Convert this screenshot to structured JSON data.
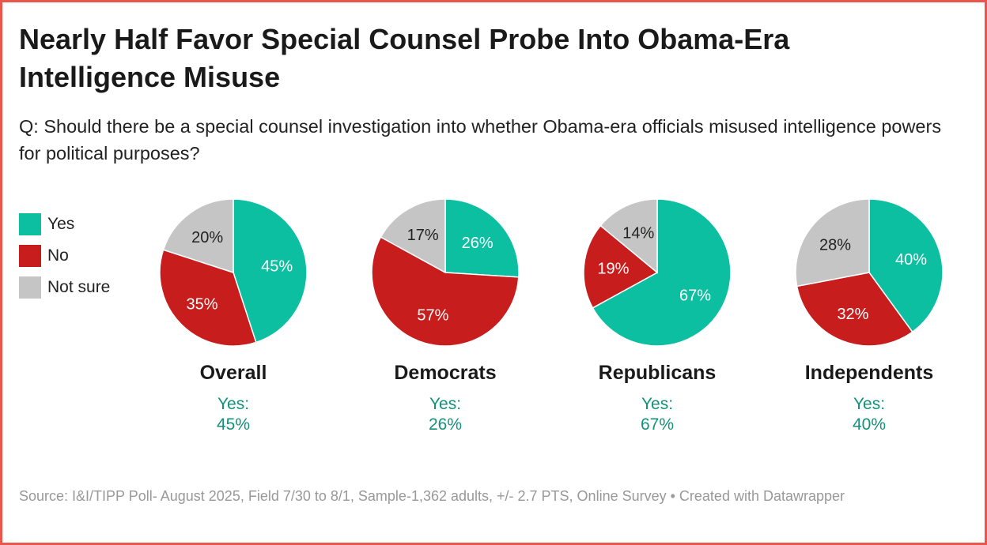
{
  "title": "Nearly Half Favor Special Counsel Probe Into Obama-Era Intelligence Misuse",
  "subtitle": "Q: Should there be a special counsel investigation into whether Obama-era officials misused intelligence powers for political purposes?",
  "legend": [
    {
      "label": "Yes",
      "color": "#0dbfa1"
    },
    {
      "label": "No",
      "color": "#c71e1d"
    },
    {
      "label": "Not sure",
      "color": "#c5c5c5"
    }
  ],
  "chart_data": {
    "type": "pie",
    "categories": [
      "Yes",
      "No",
      "Not sure"
    ],
    "colors": [
      "#0dbfa1",
      "#c71e1d",
      "#c5c5c5"
    ],
    "legend_position": "left",
    "panels": [
      {
        "name": "Overall",
        "values": [
          45,
          35,
          20
        ],
        "labels": [
          "45%",
          "35%",
          "20%"
        ],
        "yes_label": "Yes:",
        "yes_value": "45%"
      },
      {
        "name": "Democrats",
        "values": [
          26,
          57,
          17
        ],
        "labels": [
          "26%",
          "57%",
          "17%"
        ],
        "yes_label": "Yes:",
        "yes_value": "26%"
      },
      {
        "name": "Republicans",
        "values": [
          67,
          19,
          14
        ],
        "labels": [
          "67%",
          "19%",
          "14%"
        ],
        "yes_label": "Yes:",
        "yes_value": "67%"
      },
      {
        "name": "Independents",
        "values": [
          40,
          32,
          28
        ],
        "labels": [
          "40%",
          "32%",
          "28%"
        ],
        "yes_label": "Yes:",
        "yes_value": "40%"
      }
    ]
  },
  "source": "Source: I&I/TIPP Poll- August 2025, Field 7/30 to 8/1, Sample-1,362 adults, +/- 2.7 PTS, Online Survey • Created with Datawrapper"
}
